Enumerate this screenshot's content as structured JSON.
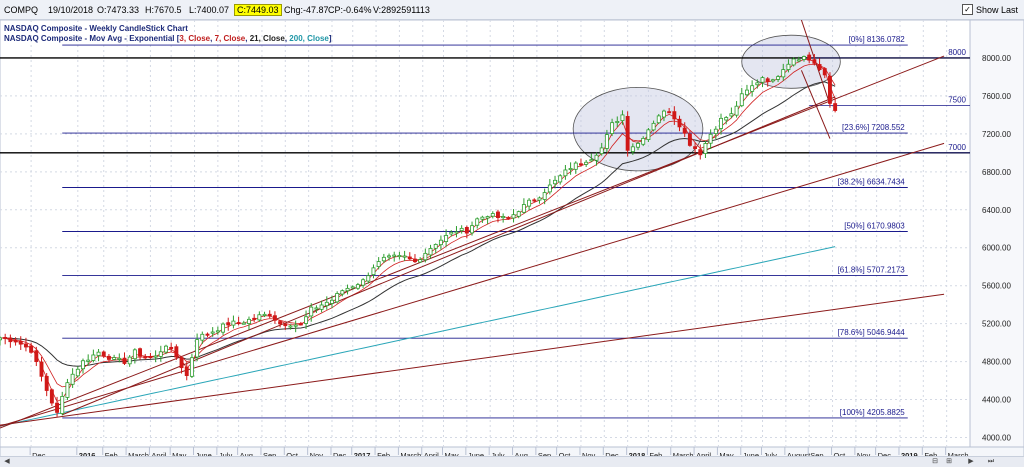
{
  "toolbar": {
    "symbol": "COMPQ",
    "date": "19/10/2018",
    "open": "O:7473.33",
    "high": "H:7670.5",
    "low": "L:7400.07",
    "close": "C:7449.03",
    "chg": "Chg:-47.87",
    "cp": "CP:-0.64%",
    "volume": "V:2892591113",
    "show_last": "Show Last"
  },
  "legend": {
    "line1": "NASDAQ Composite - Weekly CandleStick Chart",
    "line2_prefix": "NASDAQ Composite - Mov Avg - Exponential [",
    "ma3": "3, Close",
    "ma7": "7, Close",
    "ma21": "21, Close",
    "ma200": "200, Close",
    "line2_suffix": "]"
  },
  "colors": {
    "up": "#2e9e2e",
    "down": "#d01818",
    "ma_fast": "#d02020",
    "ma_21": "#333333",
    "ma_200": "#2aa6b8",
    "fib": "#1a1a8c",
    "trend": "#8b1a1a",
    "grid": "#d4d9e4",
    "highlight": "#c3c8e0"
  },
  "chart_data": {
    "type": "candlestick",
    "title": "NASDAQ Composite - Weekly CandleStick Chart",
    "ylim": [
      3900,
      8400
    ],
    "y_ticks": [
      4000,
      4400,
      4800,
      5200,
      5600,
      6000,
      6400,
      6800,
      7200,
      7600,
      8000
    ],
    "y_tick_labels": [
      "4000.00",
      "4400.00",
      "4800.00",
      "5200.00",
      "5600.00",
      "6000.00",
      "6400.00",
      "6800.00",
      "7200.00",
      "7600.00",
      "8000.00"
    ],
    "x_labels": [
      {
        "label": "Dec",
        "x": 6,
        "bold": false
      },
      {
        "label": "2016",
        "x": 15,
        "bold": true
      },
      {
        "label": "Feb",
        "x": 20,
        "bold": false
      },
      {
        "label": "March",
        "x": 24.5,
        "bold": false
      },
      {
        "label": "April",
        "x": 29,
        "bold": false
      },
      {
        "label": "May",
        "x": 33,
        "bold": false
      },
      {
        "label": "June",
        "x": 37.5,
        "bold": false
      },
      {
        "label": "July",
        "x": 42,
        "bold": false
      },
      {
        "label": "Aug",
        "x": 46,
        "bold": false
      },
      {
        "label": "Sep",
        "x": 50.5,
        "bold": false
      },
      {
        "label": "Oct",
        "x": 55,
        "bold": false
      },
      {
        "label": "Nov",
        "x": 59.5,
        "bold": false
      },
      {
        "label": "Dec",
        "x": 64,
        "bold": false
      },
      {
        "label": "2017",
        "x": 68,
        "bold": true
      },
      {
        "label": "Feb",
        "x": 72.5,
        "bold": false
      },
      {
        "label": "March",
        "x": 77,
        "bold": false
      },
      {
        "label": "April",
        "x": 81.5,
        "bold": false
      },
      {
        "label": "May",
        "x": 85.5,
        "bold": false
      },
      {
        "label": "June",
        "x": 90,
        "bold": false
      },
      {
        "label": "July",
        "x": 94.5,
        "bold": false
      },
      {
        "label": "Aug",
        "x": 99,
        "bold": false
      },
      {
        "label": "Sep",
        "x": 103.5,
        "bold": false
      },
      {
        "label": "Oct",
        "x": 107.5,
        "bold": false
      },
      {
        "label": "Nov",
        "x": 112,
        "bold": false
      },
      {
        "label": "Dec",
        "x": 116.5,
        "bold": false
      },
      {
        "label": "2018",
        "x": 121,
        "bold": true
      },
      {
        "label": "Feb",
        "x": 125,
        "bold": false
      },
      {
        "label": "March",
        "x": 129.5,
        "bold": false
      },
      {
        "label": "April",
        "x": 134,
        "bold": false
      },
      {
        "label": "May",
        "x": 138.5,
        "bold": false
      },
      {
        "label": "June",
        "x": 143,
        "bold": false
      },
      {
        "label": "July",
        "x": 147,
        "bold": false
      },
      {
        "label": "August",
        "x": 151.5,
        "bold": false
      },
      {
        "label": "Sep",
        "x": 156,
        "bold": false
      },
      {
        "label": "Oct",
        "x": 160.5,
        "bold": false
      },
      {
        "label": "Nov",
        "x": 165,
        "bold": false
      },
      {
        "label": "Dec",
        "x": 169,
        "bold": false
      },
      {
        "label": "2019",
        "x": 173.5,
        "bold": true
      },
      {
        "label": "Feb",
        "x": 178,
        "bold": false
      },
      {
        "label": "March",
        "x": 182.5,
        "bold": false
      }
    ],
    "x_range": [
      0,
      187
    ],
    "fib_levels": [
      {
        "label": "[0%] 8136.0782",
        "value": 8136.0782
      },
      {
        "label": "[23.6%] 7208.552",
        "value": 7208.552
      },
      {
        "label": "[38.2%] 6634.7434",
        "value": 6634.7434
      },
      {
        "label": "[50%] 6170.9803",
        "value": 6170.9803
      },
      {
        "label": "[61.8%] 5707.2173",
        "value": 5707.2173
      },
      {
        "label": "[78.6%] 5046.9444",
        "value": 5046.9444
      },
      {
        "label": "[100%] 4205.8825",
        "value": 4205.8825
      }
    ],
    "fib_x_range": [
      12,
      175
    ],
    "horizontal_levels": [
      {
        "label": "8000",
        "value": 8000
      },
      {
        "label": "7500",
        "value": 7500
      },
      {
        "label": "7000",
        "value": 7000
      }
    ],
    "level_lines": [
      8000,
      7000
    ],
    "trendlines": [
      {
        "x1": 0,
        "y1": 4100,
        "x2": 182,
        "y2": 8020
      },
      {
        "x1": 0,
        "y1": 4120,
        "x2": 182,
        "y2": 7100
      },
      {
        "x1": 0,
        "y1": 4130,
        "x2": 182,
        "y2": 5510
      },
      {
        "x1": 12,
        "y1": 4240,
        "x2": 161,
        "y2": 7590
      },
      {
        "x1": 154.5,
        "y1": 8400,
        "x2": 160,
        "y2": 7510
      },
      {
        "x1": 154.5,
        "y1": 7870,
        "x2": 160,
        "y2": 7150
      }
    ],
    "ellipses": [
      {
        "cx": 123,
        "cy": 7250,
        "rx": 12.5,
        "ry": 440
      },
      {
        "cx": 152.5,
        "cy": 7960,
        "rx": 9.5,
        "ry": 280
      }
    ],
    "anchors": [
      [
        0,
        5050
      ],
      [
        3,
        5020
      ],
      [
        6,
        4920
      ],
      [
        9,
        4500
      ],
      [
        11,
        4250
      ],
      [
        13,
        4600
      ],
      [
        16,
        4800
      ],
      [
        19,
        4900
      ],
      [
        22,
        4820
      ],
      [
        24,
        4800
      ],
      [
        26,
        4900
      ],
      [
        28,
        4850
      ],
      [
        30,
        4850
      ],
      [
        32,
        4980
      ],
      [
        34,
        4850
      ],
      [
        36,
        4650
      ],
      [
        38,
        5050
      ],
      [
        41,
        5120
      ],
      [
        44,
        5200
      ],
      [
        47,
        5220
      ],
      [
        50,
        5280
      ],
      [
        52,
        5300
      ],
      [
        54,
        5200
      ],
      [
        56,
        5200
      ],
      [
        58,
        5180
      ],
      [
        60,
        5350
      ],
      [
        62,
        5400
      ],
      [
        64,
        5450
      ],
      [
        66,
        5550
      ],
      [
        68,
        5600
      ],
      [
        70,
        5650
      ],
      [
        72,
        5800
      ],
      [
        74,
        5880
      ],
      [
        76,
        5900
      ],
      [
        78,
        5900
      ],
      [
        80,
        5850
      ],
      [
        82,
        5950
      ],
      [
        84,
        6050
      ],
      [
        86,
        6120
      ],
      [
        88,
        6180
      ],
      [
        90,
        6180
      ],
      [
        92,
        6300
      ],
      [
        94,
        6350
      ],
      [
        96,
        6320
      ],
      [
        98,
        6300
      ],
      [
        100,
        6400
      ],
      [
        102,
        6480
      ],
      [
        104,
        6550
      ],
      [
        106,
        6650
      ],
      [
        108,
        6750
      ],
      [
        110,
        6850
      ],
      [
        112,
        6900
      ],
      [
        114,
        6950
      ],
      [
        116,
        7050
      ],
      [
        118,
        7300
      ],
      [
        120,
        7400
      ],
      [
        121,
        7050
      ],
      [
        123,
        7100
      ],
      [
        125,
        7250
      ],
      [
        127,
        7400
      ],
      [
        129,
        7450
      ],
      [
        131,
        7300
      ],
      [
        133,
        7100
      ],
      [
        135,
        7000
      ],
      [
        137,
        7200
      ],
      [
        139,
        7350
      ],
      [
        141,
        7400
      ],
      [
        143,
        7600
      ],
      [
        145,
        7700
      ],
      [
        147,
        7800
      ],
      [
        149,
        7750
      ],
      [
        151,
        7900
      ],
      [
        153,
        8000
      ],
      [
        155,
        8010
      ],
      [
        157,
        7950
      ],
      [
        159,
        7800
      ],
      [
        160,
        7520
      ],
      [
        161,
        7450
      ]
    ],
    "volatility": 35,
    "ma_periods": [
      3,
      7,
      21,
      200
    ]
  }
}
